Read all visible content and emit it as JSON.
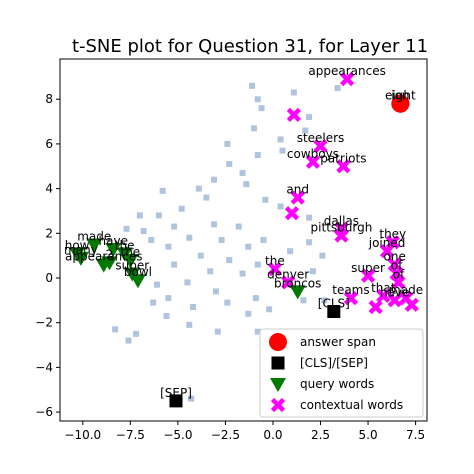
{
  "chart_data": {
    "type": "scatter",
    "title": "t-SNE plot for Question 31, for Layer 11",
    "xlabel": "",
    "ylabel": "",
    "xlim": [
      -11.2,
      8.1
    ],
    "ylim": [
      -6.4,
      9.8
    ],
    "xticks": [
      -10.0,
      -7.5,
      -5.0,
      -2.5,
      0.0,
      2.5,
      5.0,
      7.5
    ],
    "xtick_labels": [
      "−10.0",
      "−7.5",
      "−5.0",
      "−2.5",
      "0.0",
      "2.5",
      "5.0",
      "7.5"
    ],
    "yticks": [
      -6,
      -4,
      -2,
      0,
      2,
      4,
      6,
      8
    ],
    "ytick_labels": [
      "−6",
      "−4",
      "−2",
      "0",
      "2",
      "4",
      "6",
      "8"
    ],
    "grid": false,
    "legend_position": "bottom-right",
    "colors": {
      "answer": "#ff0000",
      "cls_sep": "#000000",
      "query": "#007a00",
      "context": "#ff00ff",
      "background": "#b0c4de"
    },
    "series": [
      {
        "name": "answer span",
        "marker": "circle",
        "points": [
          {
            "x": 6.7,
            "y": 7.8,
            "label": "eight"
          },
          {
            "x": 6.7,
            "y": 7.8,
            "label": "ion"
          }
        ]
      },
      {
        "name": "[CLS]/[SEP]",
        "marker": "square",
        "points": [
          {
            "x": 3.2,
            "y": -1.5,
            "label": "[CLS]"
          },
          {
            "x": -5.1,
            "y": -5.5,
            "label": "[SEP]"
          }
        ]
      },
      {
        "name": "query words",
        "marker": "triangle-down",
        "points": [
          {
            "x": -10.3,
            "y": 1.1,
            "label": "how"
          },
          {
            "x": -10.1,
            "y": 0.9,
            "label": "many"
          },
          {
            "x": -9.4,
            "y": 1.5,
            "label": "made"
          },
          {
            "x": -8.9,
            "y": 0.6,
            "label": "appearances"
          },
          {
            "x": -8.4,
            "y": 1.3,
            "label": "have"
          },
          {
            "x": -7.8,
            "y": 1.1,
            "label": "the"
          },
          {
            "x": -7.5,
            "y": 0.8,
            "label": "the"
          },
          {
            "x": -8.6,
            "y": 0.7,
            "label": "2"
          },
          {
            "x": -7.4,
            "y": 0.2,
            "label": "super"
          },
          {
            "x": -7.1,
            "y": -0.1,
            "label": "bowl"
          },
          {
            "x": 1.3,
            "y": -0.6,
            "label": "broncos"
          }
        ]
      },
      {
        "name": "contextual words",
        "marker": "x",
        "points": [
          {
            "x": 3.9,
            "y": 8.9,
            "label": "appearances"
          },
          {
            "x": 1.1,
            "y": 7.3,
            "label": ""
          },
          {
            "x": 2.5,
            "y": 5.9,
            "label": "steelers"
          },
          {
            "x": 2.1,
            "y": 5.2,
            "label": "cowboys"
          },
          {
            "x": 3.7,
            "y": 5.0,
            "label": "patriots"
          },
          {
            "x": 1.3,
            "y": 3.6,
            "label": "and"
          },
          {
            "x": 1.0,
            "y": 2.9,
            "label": ""
          },
          {
            "x": 3.6,
            "y": 2.2,
            "label": "dallas"
          },
          {
            "x": 3.6,
            "y": 1.9,
            "label": "pittsburgh"
          },
          {
            "x": 6.3,
            "y": 1.6,
            "label": "they"
          },
          {
            "x": 6.0,
            "y": 1.2,
            "label": "joined"
          },
          {
            "x": 0.1,
            "y": 0.4,
            "label": "the"
          },
          {
            "x": 0.8,
            "y": -0.2,
            "label": "denver"
          },
          {
            "x": 5.0,
            "y": 0.1,
            "label": "super"
          },
          {
            "x": 4.1,
            "y": -0.9,
            "label": "teams"
          },
          {
            "x": 6.4,
            "y": 0.6,
            "label": "one"
          },
          {
            "x": 6.5,
            "y": 0.2,
            "label": "of"
          },
          {
            "x": 6.6,
            "y": -0.2,
            "label": "of"
          },
          {
            "x": 5.8,
            "y": -0.8,
            "label": "that"
          },
          {
            "x": 6.4,
            "y": -1.0,
            "label": "have"
          },
          {
            "x": 7.0,
            "y": -0.9,
            "label": "made"
          },
          {
            "x": 5.4,
            "y": -1.3,
            "label": ""
          },
          {
            "x": 7.3,
            "y": -1.2,
            "label": ""
          }
        ]
      },
      {
        "name": "other tokens",
        "marker": "square-small",
        "legend": false,
        "points": [
          {
            "x": -1.1,
            "y": 8.6
          },
          {
            "x": 3.4,
            "y": 8.5
          },
          {
            "x": -0.8,
            "y": 8.0
          },
          {
            "x": 1.1,
            "y": 8.3
          },
          {
            "x": -0.6,
            "y": 7.6
          },
          {
            "x": 1.9,
            "y": 7.2
          },
          {
            "x": 1.7,
            "y": 6.6
          },
          {
            "x": -2.4,
            "y": 6.0
          },
          {
            "x": -1.0,
            "y": 6.7
          },
          {
            "x": 0.4,
            "y": 6.2
          },
          {
            "x": 0.5,
            "y": 5.7
          },
          {
            "x": -0.8,
            "y": 5.5
          },
          {
            "x": -2.3,
            "y": 5.1
          },
          {
            "x": -3.1,
            "y": 4.4
          },
          {
            "x": -3.9,
            "y": 4.0
          },
          {
            "x": -3.5,
            "y": 3.6
          },
          {
            "x": -1.6,
            "y": 4.7
          },
          {
            "x": -1.4,
            "y": 4.2
          },
          {
            "x": -0.4,
            "y": 3.5
          },
          {
            "x": 0.4,
            "y": 3.2
          },
          {
            "x": -5.8,
            "y": 3.9
          },
          {
            "x": -4.8,
            "y": 3.1
          },
          {
            "x": -6.0,
            "y": 2.8
          },
          {
            "x": -7.0,
            "y": 2.8
          },
          {
            "x": -7.7,
            "y": 2.2
          },
          {
            "x": -6.8,
            "y": 2.1
          },
          {
            "x": -6.4,
            "y": 1.7
          },
          {
            "x": -5.2,
            "y": 2.3
          },
          {
            "x": -5.5,
            "y": 1.4
          },
          {
            "x": -4.4,
            "y": 1.8
          },
          {
            "x": -3.8,
            "y": 1.0
          },
          {
            "x": -2.7,
            "y": 1.7
          },
          {
            "x": -1.8,
            "y": 2.3
          },
          {
            "x": -1.3,
            "y": 1.4
          },
          {
            "x": -2.3,
            "y": 0.8
          },
          {
            "x": -0.5,
            "y": 1.7
          },
          {
            "x": 1.9,
            "y": 1.6
          },
          {
            "x": 2.6,
            "y": 1.0
          },
          {
            "x": 2.1,
            "y": 0.3
          },
          {
            "x": -0.8,
            "y": 0.6
          },
          {
            "x": -1.6,
            "y": 0.2
          },
          {
            "x": -3.3,
            "y": 0.3
          },
          {
            "x": -5.2,
            "y": 0.6
          },
          {
            "x": -6.1,
            "y": -0.3
          },
          {
            "x": -4.5,
            "y": -0.2
          },
          {
            "x": -3.0,
            "y": -0.6
          },
          {
            "x": -5.5,
            "y": -0.9
          },
          {
            "x": -6.3,
            "y": -1.1
          },
          {
            "x": -4.2,
            "y": -1.3
          },
          {
            "x": -2.4,
            "y": -1.1
          },
          {
            "x": -1.3,
            "y": -1.6
          },
          {
            "x": -0.2,
            "y": -1.4
          },
          {
            "x": -0.8,
            "y": -2.4
          },
          {
            "x": -2.9,
            "y": -2.4
          },
          {
            "x": -4.4,
            "y": -2.1
          },
          {
            "x": -5.6,
            "y": -1.7
          },
          {
            "x": -7.2,
            "y": -2.5
          },
          {
            "x": -8.3,
            "y": -2.3
          },
          {
            "x": -7.6,
            "y": -2.8
          },
          {
            "x": 1.6,
            "y": -1.0
          },
          {
            "x": 2.7,
            "y": -1.0
          },
          {
            "x": -0.9,
            "y": -0.9
          },
          {
            "x": 1.9,
            "y": 2.7
          },
          {
            "x": -4.3,
            "y": -5.4
          },
          {
            "x": -3.1,
            "y": 2.4
          },
          {
            "x": 0.9,
            "y": 1.2
          }
        ]
      }
    ]
  }
}
